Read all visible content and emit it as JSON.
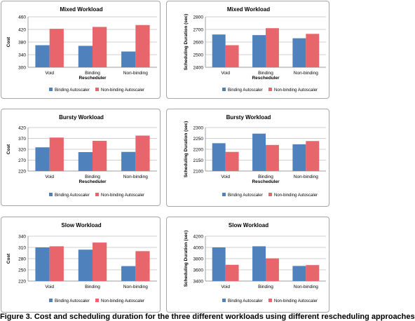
{
  "caption": "Figure 3. Cost and scheduling duration for the three different workloads using different rescheduling approaches",
  "colors": {
    "binding": "#4f81bd",
    "nonbinding": "#e8666b"
  },
  "chart_data": [
    {
      "type": "bar",
      "title": "Mixed Workload",
      "categories": [
        "Void",
        "Binding",
        "Non-binding"
      ],
      "series": [
        {
          "name": "Binding Autoscaler",
          "values": [
            370,
            368,
            350
          ]
        },
        {
          "name": "Non-binding Autoscaler",
          "values": [
            422,
            428,
            434
          ]
        }
      ],
      "xlabel": "Rescheduler",
      "ylabel": "Cost",
      "ylim": [
        300,
        460
      ],
      "yticks": [
        300,
        340,
        380,
        420,
        460
      ],
      "grid": true,
      "legend": "bottom"
    },
    {
      "type": "bar",
      "title": "Mixed Workload",
      "categories": [
        "Void",
        "Binding",
        "Non-binding"
      ],
      "series": [
        {
          "name": "Binding Autoscaler",
          "values": [
            2660,
            2655,
            2630
          ]
        },
        {
          "name": "Non-binding Autoscaler",
          "values": [
            2575,
            2710,
            2665
          ]
        }
      ],
      "xlabel": "Rescheduler",
      "ylabel": "Scheduling Duration (sec)",
      "ylim": [
        2400,
        2800
      ],
      "yticks": [
        2400,
        2500,
        2600,
        2700,
        2800
      ],
      "grid": true,
      "legend": "bottom"
    },
    {
      "type": "bar",
      "title": "Bursty Workload",
      "categories": [
        "Void",
        "Binding",
        "Non-binding"
      ],
      "series": [
        {
          "name": "Binding Autoscaler",
          "values": [
            329,
            307,
            308
          ]
        },
        {
          "name": "Non-binding Autoscaler",
          "values": [
            374,
            359,
            383
          ]
        }
      ],
      "xlabel": "Rescheduler",
      "ylabel": "Cost",
      "ylim": [
        220,
        420
      ],
      "yticks": [
        220,
        270,
        320,
        370,
        420
      ],
      "grid": true,
      "legend": "bottom"
    },
    {
      "type": "bar",
      "title": "Bursty Workload",
      "categories": [
        "Void",
        "Binding",
        "Non-binding"
      ],
      "series": [
        {
          "name": "Binding Autoscaler",
          "values": [
            2228,
            2272,
            2223
          ]
        },
        {
          "name": "Non-binding Autoscaler",
          "values": [
            2188,
            2220,
            2238
          ]
        }
      ],
      "xlabel": "Rescheduler",
      "ylabel": "Scheduling Duration (sec)",
      "ylim": [
        2100,
        2300
      ],
      "yticks": [
        2100,
        2150,
        2200,
        2250,
        2300
      ],
      "grid": true,
      "legend": "bottom"
    },
    {
      "type": "bar",
      "title": "Slow Workload",
      "categories": [
        "Void",
        "Binding",
        "Non-binding"
      ],
      "series": [
        {
          "name": "Binding Autoscaler",
          "values": [
            310,
            304,
            260
          ]
        },
        {
          "name": "Non-binding Autoscaler",
          "values": [
            313,
            323,
            300
          ]
        }
      ],
      "xlabel": "",
      "ylabel": "Cost",
      "ylim": [
        220,
        340
      ],
      "yticks": [
        220,
        250,
        280,
        310,
        340
      ],
      "grid": true,
      "legend": "bottom"
    },
    {
      "type": "bar",
      "title": "Slow Workload",
      "categories": [
        "Void",
        "Binding",
        "Non-binding"
      ],
      "series": [
        {
          "name": "Binding Autoscaler",
          "values": [
            4000,
            4020,
            3670
          ]
        },
        {
          "name": "Non-binding Autoscaler",
          "values": [
            3690,
            3805,
            3685
          ]
        }
      ],
      "xlabel": "",
      "ylabel": "Scheduling Duration (sec)",
      "ylim": [
        3400,
        4200
      ],
      "yticks": [
        3400,
        3600,
        3800,
        4000,
        4200
      ],
      "grid": true,
      "legend": "bottom"
    }
  ]
}
